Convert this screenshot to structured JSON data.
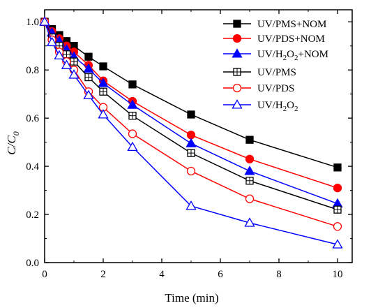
{
  "chart_data": {
    "type": "line",
    "xlabel": "Time (min)",
    "ylabel": "C/C0",
    "xlim": [
      0,
      10.5
    ],
    "ylim": [
      0,
      1.05
    ],
    "x_ticks": [
      0,
      2,
      4,
      6,
      8,
      10
    ],
    "y_ticks": [
      0.0,
      0.2,
      0.4,
      0.6,
      0.8,
      1.0
    ],
    "x_tick_labels": [
      "0",
      "2",
      "4",
      "6",
      "8",
      "10"
    ],
    "y_tick_labels": [
      "0.0",
      "0.2",
      "0.4",
      "0.6",
      "0.8",
      "1.0"
    ],
    "grid": false,
    "legend_position": "top-right",
    "x": [
      0,
      0.25,
      0.5,
      0.75,
      1,
      1.5,
      2,
      3,
      5,
      7,
      10
    ],
    "series": [
      {
        "name": "UV/PMS+NOM",
        "label_main": "UV/PMS+NOM",
        "color": "#000000",
        "marker": "square",
        "filled": true,
        "values": [
          1.0,
          0.97,
          0.945,
          0.92,
          0.9,
          0.855,
          0.815,
          0.74,
          0.615,
          0.51,
          0.395
        ]
      },
      {
        "name": "UV/PDS+NOM",
        "label_main": "UV/PDS+NOM",
        "color": "#ff0000",
        "marker": "circle",
        "filled": true,
        "values": [
          1.0,
          0.96,
          0.93,
          0.9,
          0.875,
          0.82,
          0.755,
          0.67,
          0.53,
          0.43,
          0.31
        ]
      },
      {
        "name": "UV/H2O2+NOM",
        "label_main": "UV/H",
        "label_sub": "2",
        "label_mid": "O",
        "label_sub2": "2",
        "label_end": "+NOM",
        "color": "#0000ff",
        "marker": "triangle",
        "filled": true,
        "values": [
          1.0,
          0.955,
          0.92,
          0.885,
          0.855,
          0.805,
          0.745,
          0.655,
          0.495,
          0.38,
          0.245
        ]
      },
      {
        "name": "UV/PMS",
        "label_main": "UV/PMS",
        "color": "#000000",
        "marker": "square",
        "filled": false,
        "values": [
          1.0,
          0.935,
          0.9,
          0.865,
          0.835,
          0.77,
          0.71,
          0.61,
          0.455,
          0.34,
          0.22
        ]
      },
      {
        "name": "UV/PDS",
        "label_main": "UV/PDS",
        "color": "#ff0000",
        "marker": "circle",
        "filled": false,
        "values": [
          1.0,
          0.925,
          0.875,
          0.835,
          0.8,
          0.71,
          0.645,
          0.535,
          0.38,
          0.265,
          0.15
        ]
      },
      {
        "name": "UV/H2O2",
        "label_main": "UV/H",
        "label_sub": "2",
        "label_mid": "O",
        "label_sub2": "2",
        "label_end": "",
        "color": "#0000ff",
        "marker": "triangle",
        "filled": false,
        "values": [
          1.0,
          0.915,
          0.86,
          0.82,
          0.78,
          0.695,
          0.615,
          0.48,
          0.235,
          0.165,
          0.075
        ]
      }
    ]
  }
}
